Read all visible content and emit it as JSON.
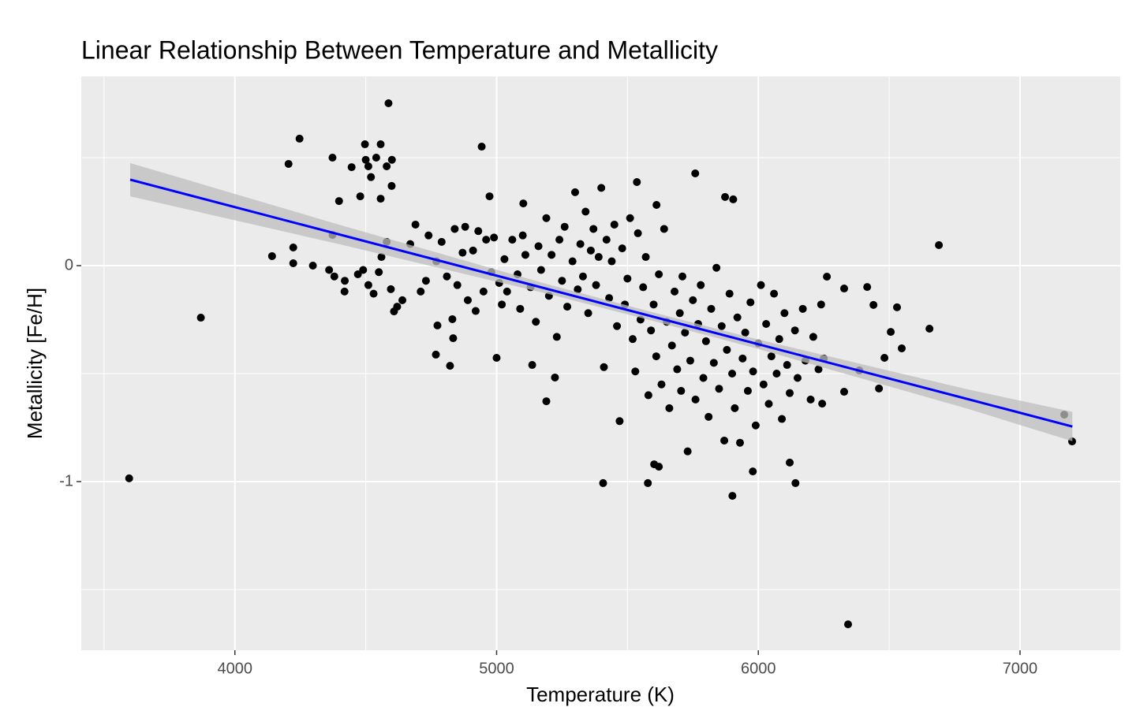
{
  "chart_data": {
    "type": "scatter",
    "title": "Linear Relationship Between Temperature and Metallicity",
    "x_label": "Temperature (K)",
    "y_label": "Metallicity [Fe/H]",
    "xlim": [
      3413,
      7383
    ],
    "ylim": [
      -1.781,
      0.876
    ],
    "xticks": [
      4000,
      5000,
      6000,
      7000
    ],
    "yticks": [
      -1,
      0
    ],
    "minor_xticks": [
      3500,
      4500,
      5500,
      6500
    ],
    "minor_yticks": [
      -1.5,
      -0.5,
      0.5
    ],
    "grid": true,
    "panel_color": "#ebebeb",
    "x": [
      3596,
      3870,
      6343,
      6690,
      7169,
      7199,
      4587,
      4247,
      4943,
      4205,
      4373,
      4446,
      4497,
      4557,
      4599,
      4398,
      4479,
      4557,
      4142,
      4223,
      4223,
      4298,
      4373,
      5407,
      5578,
      5901,
      5979,
      6142,
      6120,
      5602,
      5620,
      5759,
      5873,
      5904,
      5536,
      4973,
      5102,
      5611,
      6416,
      6440,
      6530,
      6506,
      6548,
      6482,
      6461,
      6654,
      6386,
      6328,
      6262,
      6328,
      6244,
      5190,
      5223,
      5136,
      5000,
      4822,
      4768,
      4774,
      4831,
      4834,
      4596,
      4608,
      4419,
      4500,
      4510,
      4520,
      4540,
      4580,
      4600,
      4360,
      4380,
      4420,
      4470,
      4490,
      4510,
      4530,
      4550,
      4560,
      4580,
      4620,
      4640,
      4670,
      4690,
      4710,
      4730,
      4740,
      4770,
      4790,
      4810,
      4840,
      4850,
      4870,
      4880,
      4890,
      4910,
      4920,
      4930,
      4950,
      4960,
      4980,
      4990,
      5010,
      5020,
      5030,
      5040,
      5060,
      5080,
      5090,
      5100,
      5110,
      5130,
      5150,
      5160,
      5170,
      5190,
      5200,
      5210,
      5230,
      5240,
      5250,
      5260,
      5270,
      5290,
      5300,
      5310,
      5320,
      5330,
      5340,
      5350,
      5360,
      5370,
      5380,
      5390,
      5400,
      5410,
      5420,
      5430,
      5440,
      5450,
      5460,
      5470,
      5480,
      5490,
      5500,
      5510,
      5520,
      5530,
      5540,
      5550,
      5560,
      5570,
      5580,
      5590,
      5600,
      5610,
      5620,
      5630,
      5640,
      5650,
      5660,
      5670,
      5680,
      5690,
      5700,
      5705,
      5710,
      5720,
      5730,
      5740,
      5750,
      5760,
      5770,
      5780,
      5790,
      5800,
      5810,
      5820,
      5830,
      5840,
      5850,
      5860,
      5870,
      5880,
      5890,
      5900,
      5910,
      5920,
      5930,
      5940,
      5950,
      5960,
      5970,
      5980,
      5990,
      6000,
      6010,
      6020,
      6030,
      6040,
      6050,
      6060,
      6070,
      6080,
      6090,
      6100,
      6110,
      6120,
      6140,
      6150,
      6170,
      6180,
      6200,
      6210,
      6230,
      6240,
      6250
    ],
    "series": [
      {
        "color": "#000000",
        "values": [
          -0.985,
          -0.241,
          -1.661,
          0.095,
          -0.69,
          -0.814,
          0.752,
          0.588,
          0.551,
          0.471,
          0.5,
          0.456,
          0.562,
          0.562,
          0.369,
          0.299,
          0.321,
          0.31,
          0.044,
          0.084,
          0.011,
          0.0,
          0.142,
          -1.007,
          -1.007,
          -1.066,
          -0.953,
          -1.007,
          -0.912,
          -0.92,
          -0.931,
          0.427,
          0.318,
          0.307,
          0.387,
          0.321,
          0.288,
          0.281,
          -0.099,
          -0.182,
          -0.193,
          -0.307,
          -0.383,
          -0.427,
          -0.569,
          -0.292,
          -0.485,
          -0.106,
          -0.051,
          -0.584,
          -0.639,
          -0.628,
          -0.518,
          -0.46,
          -0.427,
          -0.464,
          -0.412,
          -0.277,
          -0.248,
          -0.336,
          -0.109,
          -0.212,
          -0.12,
          0.49,
          0.46,
          0.41,
          0.5,
          0.46,
          0.49,
          -0.02,
          -0.05,
          -0.07,
          -0.04,
          -0.02,
          -0.09,
          -0.13,
          -0.03,
          0.04,
          0.11,
          -0.19,
          -0.16,
          0.1,
          0.19,
          -0.12,
          -0.07,
          0.14,
          0.02,
          0.11,
          -0.05,
          0.17,
          -0.09,
          0.06,
          0.18,
          -0.16,
          0.07,
          -0.21,
          0.16,
          -0.12,
          0.12,
          -0.03,
          0.13,
          -0.08,
          -0.18,
          0.03,
          -0.12,
          0.12,
          -0.04,
          -0.2,
          0.14,
          0.05,
          -0.1,
          -0.26,
          0.09,
          -0.02,
          0.22,
          -0.14,
          0.05,
          -0.33,
          0.12,
          -0.07,
          0.18,
          -0.19,
          0.02,
          0.34,
          -0.11,
          0.1,
          -0.05,
          0.25,
          -0.22,
          0.07,
          0.17,
          -0.09,
          0.04,
          0.36,
          -0.47,
          0.12,
          -0.15,
          0.02,
          0.19,
          -0.28,
          -0.72,
          0.08,
          -0.18,
          -0.06,
          0.22,
          -0.34,
          -0.49,
          0.15,
          -0.25,
          -0.1,
          0.04,
          -0.6,
          -0.3,
          -0.18,
          -0.42,
          -0.04,
          -0.55,
          0.17,
          -0.26,
          -0.66,
          -0.37,
          -0.12,
          -0.48,
          -0.22,
          -0.58,
          -0.05,
          -0.31,
          -0.86,
          -0.44,
          -0.16,
          -0.62,
          -0.27,
          -0.09,
          -0.52,
          -0.35,
          -0.7,
          -0.2,
          -0.45,
          -0.01,
          -0.57,
          -0.28,
          -0.81,
          -0.39,
          -0.13,
          -0.5,
          -0.66,
          -0.24,
          -0.82,
          -0.43,
          -0.31,
          -0.58,
          -0.17,
          -0.49,
          -0.74,
          -0.36,
          -0.09,
          -0.55,
          -0.27,
          -0.64,
          -0.42,
          -0.13,
          -0.5,
          -0.34,
          -0.71,
          -0.22,
          -0.46,
          -0.59,
          -0.3,
          -0.52,
          -0.2,
          -0.44,
          -0.62,
          -0.33,
          -0.48,
          -0.18,
          -0.43
        ]
      }
    ],
    "fit": {
      "color": "#0000ff",
      "x": [
        3600,
        7200
      ],
      "y": [
        0.398,
        -0.745
      ]
    },
    "band": {
      "color": "#bebebe",
      "x": [
        3600,
        4400,
        5200,
        5600,
        6000,
        6800,
        7200
      ],
      "upper": [
        0.475,
        0.189,
        -0.088,
        -0.217,
        -0.342,
        -0.573,
        -0.677
      ],
      "lower": [
        0.321,
        0.099,
        -0.132,
        -0.257,
        -0.386,
        -0.663,
        -0.813
      ]
    }
  }
}
